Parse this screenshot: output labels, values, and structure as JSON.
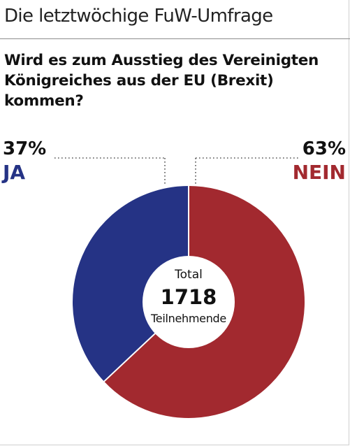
{
  "header": {
    "title": "Die letztwöchige FuW-Umfrage"
  },
  "question": "Wird es zum Ausstieg des Vereinigten Königreiches aus der EU (Brexit) kommen?",
  "chart_data": {
    "type": "pie",
    "donut": true,
    "slices": [
      {
        "label": "JA",
        "percent_label": "37%",
        "value": 37,
        "color": "#253385"
      },
      {
        "label": "NEIN",
        "percent_label": "63%",
        "value": 63,
        "color": "#a2292f"
      }
    ],
    "center": {
      "line1": "Total",
      "line2": "1718",
      "line3": "Teilnehmende"
    }
  }
}
